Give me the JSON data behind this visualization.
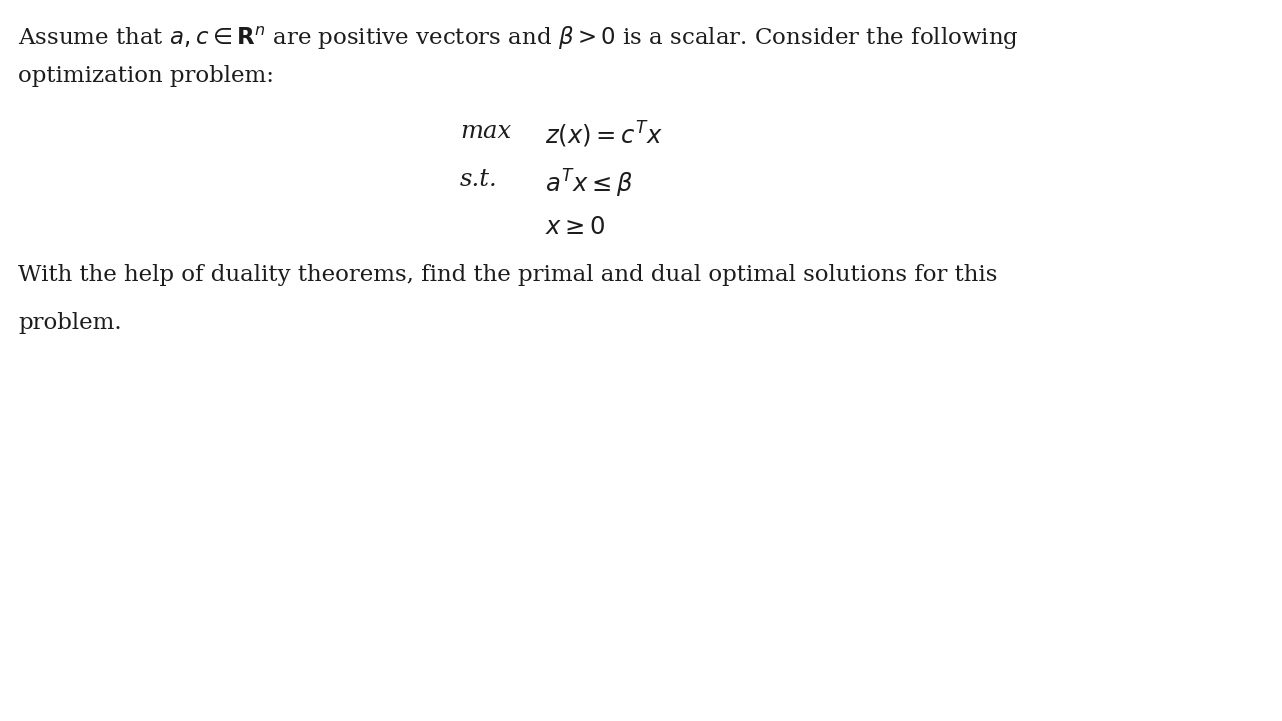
{
  "background_color": "#ffffff",
  "text_color": "#1a1a2e",
  "figsize": [
    12.82,
    7.21
  ],
  "dpi": 100,
  "line1": "Assume that $a, c \\in \\mathbf{R}^n$ are positive vectors and $\\beta > 0$ is a scalar. Consider the following",
  "line2": "optimization problem:",
  "max_label": "max",
  "max_expr": "$z(x) = c^Tx$",
  "st_label": "s.t.",
  "constraint1": "$a^Tx \\leq \\beta$",
  "constraint2": "$x \\geq 0$",
  "line_final1": "With the help of duality theorems, find the primal and dual optimal solutions for this",
  "line_final2": "problem.",
  "font_size_body": 16.5,
  "font_size_math": 17.5,
  "font_family": "serif",
  "text_color_dark": "#1c1c1c"
}
